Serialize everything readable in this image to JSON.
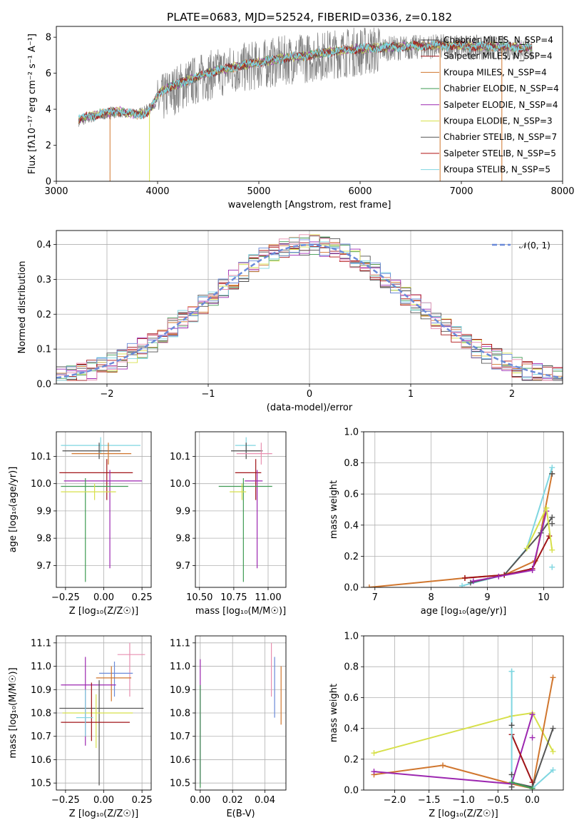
{
  "figure": {
    "title": "PLATE=0683, MJD=52524, FIBERID=0336, z=0.182",
    "series_colors": {
      "Chabrier MILES": "#4d4d4d",
      "Salpeter MILES": "#a01418",
      "Kroupa MILES": "#d0762e",
      "Chabrier ELODIE": "#3e9a52",
      "Salpeter ELODIE": "#9c27b0",
      "Kroupa ELODIE": "#d7e04a",
      "Chabrier STELIB": "#555555",
      "Salpeter STELIB": "#b01010",
      "Kroupa STELIB": "#7fd6e0"
    }
  },
  "chart_data": [
    {
      "id": "spectrum",
      "type": "line",
      "xlabel": "wavelength [Angstrom, rest frame]",
      "ylabel": "Flux [f$_\\lambda$10$^{-17}$ erg cm$^{-2}$ s$^{-1}$ A$^{-1}$]",
      "ylabel_display": "Flux [fλ10⁻¹⁷ erg cm⁻² s⁻¹ A⁻¹]",
      "xlim": [
        3000,
        8000
      ],
      "ylim": [
        0,
        8.6
      ],
      "xticks": [
        3000,
        4000,
        5000,
        6000,
        7000,
        8000
      ],
      "yticks": [
        0,
        2,
        4,
        6,
        8
      ],
      "legend_loc": "right",
      "legend": [
        {
          "label": "Chabrier MILES, N$_{SSP}$=4",
          "display": "Chabrier MILES, N_SSP=4",
          "color": "#4d4d4d"
        },
        {
          "label": "Salpeter MILES, N$_{SSP}$=4",
          "display": "Salpeter MILES, N_SSP=4",
          "color": "#a01418"
        },
        {
          "label": "Kroupa MILES, N$_{SSP}$=4",
          "display": "Kroupa MILES, N_SSP=4",
          "color": "#d0762e"
        },
        {
          "label": "Chabrier ELODIE, N$_{SSP}$=4",
          "display": "Chabrier ELODIE, N_SSP=4",
          "color": "#3e9a52"
        },
        {
          "label": "Salpeter ELODIE, N$_{SSP}$=4",
          "display": "Salpeter ELODIE, N_SSP=4",
          "color": "#9c27b0"
        },
        {
          "label": "Kroupa ELODIE, N$_{SSP}$=3",
          "display": "Kroupa ELODIE, N_SSP=3",
          "color": "#d7e04a"
        },
        {
          "label": "Chabrier STELIB, N$_{SSP}$=7",
          "display": "Chabrier STELIB, N_SSP=7",
          "color": "#555555"
        },
        {
          "label": "Salpeter STELIB, N$_{SSP}$=5",
          "display": "Salpeter STELIB, N_SSP=5",
          "color": "#b01010"
        },
        {
          "label": "Kroupa STELIB, N$_{SSP}$=5",
          "display": "Kroupa STELIB, N_SSP=5",
          "color": "#7fd6e0"
        }
      ],
      "data_envelope": {
        "x": [
          3220,
          3400,
          3600,
          3800,
          3950,
          4100,
          4300,
          4500,
          4700,
          4900,
          5100,
          5300,
          5500,
          5700,
          5900,
          6100,
          6300,
          6500,
          6700,
          6900,
          7100,
          7300,
          7500,
          7700
        ],
        "y": [
          3.3,
          3.6,
          3.8,
          3.8,
          4.2,
          5.0,
          5.6,
          6.0,
          6.3,
          6.5,
          6.7,
          6.9,
          7.0,
          7.2,
          7.3,
          7.4,
          7.45,
          7.5,
          7.55,
          7.55,
          7.5,
          7.5,
          7.45,
          7.4
        ]
      },
      "model": {
        "x": [
          3220,
          3300,
          3400,
          3500,
          3600,
          3700,
          3800,
          3900,
          3950,
          4000,
          4100,
          4200,
          4300,
          4500,
          4700,
          4900,
          5100,
          5300,
          5500,
          5700,
          5900,
          6100,
          6300,
          6500,
          6700,
          6900,
          7100,
          7300,
          7500,
          7700
        ],
        "y": [
          3.4,
          3.6,
          3.7,
          3.8,
          3.9,
          3.8,
          3.7,
          3.8,
          4.2,
          4.8,
          5.2,
          5.4,
          5.6,
          6.0,
          6.3,
          6.5,
          6.7,
          6.9,
          7.0,
          7.2,
          7.3,
          7.4,
          7.45,
          7.5,
          7.55,
          7.55,
          7.5,
          7.5,
          7.45,
          7.4
        ]
      },
      "dropouts": [
        {
          "series": "Kroupa MILES",
          "x": 3530
        },
        {
          "series": "Kroupa ELODIE",
          "x": 3920
        },
        {
          "series": "Kroupa MILES",
          "x": 6790
        },
        {
          "series": "Kroupa MILES",
          "x": 7400
        }
      ]
    },
    {
      "id": "residuals",
      "type": "histogram",
      "xlabel": "(data-model)/error",
      "ylabel": "Normed distribution",
      "xlim": [
        -2.5,
        2.5
      ],
      "ylim": [
        0,
        0.44
      ],
      "xticks": [
        -2,
        -1,
        0,
        1,
        2
      ],
      "yticks": [
        0.0,
        0.1,
        0.2,
        0.3,
        0.4
      ],
      "legend_loc": "top-right",
      "reference_curve": {
        "label": "$\\mathcal{N}(0,1)$",
        "display": "𝒩(0, 1)",
        "color": "#6a8ad8"
      },
      "bin_width": 0.1,
      "bin_edges_start": -2.5,
      "series_shape": [
        0.04,
        0.045,
        0.05,
        0.055,
        0.065,
        0.08,
        0.09,
        0.1,
        0.12,
        0.13,
        0.15,
        0.17,
        0.19,
        0.2,
        0.22,
        0.24,
        0.25,
        0.27,
        0.29,
        0.3,
        0.31,
        0.32,
        0.33,
        0.34,
        0.36,
        0.37,
        0.38,
        0.38,
        0.39,
        0.39,
        0.37,
        0.38,
        0.38,
        0.37,
        0.36,
        0.35,
        0.34,
        0.33,
        0.31,
        0.3,
        0.28,
        0.26,
        0.25,
        0.23,
        0.21,
        0.19,
        0.17,
        0.15,
        0.13,
        0.11
      ]
    },
    {
      "id": "age-vs-Z",
      "type": "errorbar",
      "xlabel": "Z [log$_{10}$(Z/Z$_\\odot$)]",
      "xlabel_display": "Z [log₁₀(Z/Z☉)]",
      "ylabel": "age  [log$_{10}$(age/yr)]",
      "ylabel_display": "age  [log₁₀(age/yr)]",
      "xlim": [
        -0.31,
        0.31
      ],
      "ylim": [
        9.62,
        10.19
      ],
      "xticks": [
        -0.25,
        0.0,
        0.25
      ],
      "yticks": [
        9.7,
        9.8,
        9.9,
        10.0,
        10.1
      ],
      "points": [
        {
          "x": -0.02,
          "xerr": [
            0.26,
            0.26
          ],
          "y": 10.14,
          "yerr": [
            0.03,
            0.03
          ],
          "c": "#7fd6e0"
        },
        {
          "x": -0.03,
          "xerr": [
            0.24,
            0.14
          ],
          "y": 10.12,
          "yerr": [
            0.03,
            0.03
          ],
          "c": "#4d4d4d"
        },
        {
          "x": 0.03,
          "xerr": [
            0.24,
            0.15
          ],
          "y": 10.11,
          "yerr": [
            0.04,
            0.04
          ],
          "c": "#d0762e"
        },
        {
          "x": 0.02,
          "xerr": [
            0.31,
            0.17
          ],
          "y": 10.04,
          "yerr": [
            0.1,
            0.05
          ],
          "c": "#a01418"
        },
        {
          "x": 0.04,
          "xerr": [
            0.3,
            0.21
          ],
          "y": 10.01,
          "yerr": [
            0.32,
            0.04
          ],
          "c": "#9c27b0"
        },
        {
          "x": -0.12,
          "xerr": [
            0.16,
            0.28
          ],
          "y": 9.99,
          "yerr": [
            0.35,
            0.03
          ],
          "c": "#3e9a52"
        },
        {
          "x": -0.06,
          "xerr": [
            0.22,
            0.14
          ],
          "y": 9.97,
          "yerr": [
            0.03,
            0.03
          ],
          "c": "#d7e04a"
        }
      ]
    },
    {
      "id": "age-vs-mass",
      "type": "errorbar",
      "xlabel": "mass [log$_{10}$(M/M$_\\odot$)]",
      "xlabel_display": "mass [log₁₀(M/M☉)]",
      "xlim": [
        10.47,
        11.13
      ],
      "ylim": [
        9.62,
        10.19
      ],
      "xticks": [
        10.5,
        10.75,
        11.0
      ],
      "yticks": [
        9.7,
        9.8,
        9.9,
        10.0,
        10.1
      ],
      "points": [
        {
          "x": 10.84,
          "xerr": [
            0.08,
            0.07
          ],
          "y": 10.14,
          "yerr": [
            0.03,
            0.03
          ],
          "c": "#7fd6e0"
        },
        {
          "x": 10.84,
          "xerr": [
            0.11,
            0.12
          ],
          "y": 10.12,
          "yerr": [
            0.03,
            0.03
          ],
          "c": "#4d4d4d"
        },
        {
          "x": 10.95,
          "xerr": [
            0.18,
            0.08
          ],
          "y": 10.11,
          "yerr": [
            0.04,
            0.04
          ],
          "c": "#e88fb0"
        },
        {
          "x": 10.91,
          "xerr": [
            0.15,
            0.04
          ],
          "y": 10.04,
          "yerr": [
            0.1,
            0.05
          ],
          "c": "#a01418"
        },
        {
          "x": 10.92,
          "xerr": [
            0.09,
            0.04
          ],
          "y": 10.01,
          "yerr": [
            0.32,
            0.04
          ],
          "c": "#9c27b0"
        },
        {
          "x": 10.82,
          "xerr": [
            0.18,
            0.21
          ],
          "y": 9.99,
          "yerr": [
            0.35,
            0.03
          ],
          "c": "#3e9a52"
        },
        {
          "x": 10.81,
          "xerr": [
            0.09,
            0.03
          ],
          "y": 9.97,
          "yerr": [
            0.03,
            0.03
          ],
          "c": "#d7e04a"
        }
      ]
    },
    {
      "id": "massweight-vs-age",
      "type": "line",
      "xlabel": "age  [log$_{10}$(age/yr)]",
      "xlabel_display": "age  [log₁₀(age/yr)]",
      "ylabel": "mass weight",
      "xlim": [
        6.8,
        10.35
      ],
      "ylim": [
        0,
        1.0
      ],
      "xticks": [
        7,
        8,
        9,
        10
      ],
      "yticks": [
        0.0,
        0.2,
        0.4,
        0.6,
        0.8,
        1.0
      ],
      "series": [
        {
          "c": "#d0762e",
          "x": [
            6.9,
            8.6,
            9.3,
            9.85,
            10.15
          ],
          "y": [
            0.0,
            0.06,
            0.08,
            0.17,
            0.73
          ]
        },
        {
          "c": "#7fd6e0",
          "x": [
            8.55,
            9.3,
            9.7,
            10.15
          ],
          "y": [
            0.01,
            0.08,
            0.25,
            0.77
          ]
        },
        {
          "c": "#555555",
          "x": [
            8.7,
            9.3,
            9.95,
            10.15
          ],
          "y": [
            0.03,
            0.08,
            0.35,
            0.45
          ]
        },
        {
          "c": "#a01418",
          "x": [
            8.6,
            9.3,
            9.8,
            10.1
          ],
          "y": [
            0.06,
            0.08,
            0.12,
            0.33
          ]
        },
        {
          "c": "#9c27b0",
          "x": [
            8.75,
            9.2,
            9.8,
            10.05
          ],
          "y": [
            0.04,
            0.07,
            0.11,
            0.49
          ]
        },
        {
          "c": "#d7e04a",
          "x": [
            9.7,
            10.05,
            10.15
          ],
          "y": [
            0.25,
            0.51,
            0.24
          ]
        }
      ],
      "markers": [
        {
          "c": "#7fd6e0",
          "x": 10.15,
          "y": 0.13
        },
        {
          "c": "#555555",
          "x": 10.15,
          "y": 0.41
        },
        {
          "c": "#4d4d4d",
          "x": 10.15,
          "y": 0.73
        }
      ]
    },
    {
      "id": "mass-vs-Z",
      "type": "errorbar",
      "xlabel": "Z [log$_{10}$(Z/Z$_\\odot$)]",
      "xlabel_display": "Z [log₁₀(Z/Z☉)]",
      "ylabel": "mass [log$_{10}$(M/M$_\\odot$)]",
      "ylabel_display": "mass [log₁₀(M/M☉)]",
      "xlim": [
        -0.31,
        0.31
      ],
      "ylim": [
        10.47,
        11.13
      ],
      "xticks": [
        -0.25,
        0.0,
        0.25
      ],
      "yticks": [
        10.5,
        10.6,
        10.7,
        10.8,
        10.9,
        11.0,
        11.1
      ],
      "points": [
        {
          "x": 0.17,
          "xerr": [
            0.08,
            0.1
          ],
          "y": 11.05,
          "yerr": [
            0.18,
            0.05
          ],
          "c": "#e88fb0"
        },
        {
          "x": 0.07,
          "xerr": [
            0.1,
            0.12
          ],
          "y": 10.97,
          "yerr": [
            0.1,
            0.05
          ],
          "c": "#6a8ad8"
        },
        {
          "x": 0.05,
          "xerr": [
            0.1,
            0.13
          ],
          "y": 10.95,
          "yerr": [
            0.1,
            0.05
          ],
          "c": "#d0762e"
        },
        {
          "x": -0.12,
          "xerr": [
            0.16,
            0.2
          ],
          "y": 10.92,
          "yerr": [
            0.26,
            0.12
          ],
          "c": "#9c27b0"
        },
        {
          "x": -0.03,
          "xerr": [
            0.26,
            0.29
          ],
          "y": 10.82,
          "yerr": [
            0.33,
            0.12
          ],
          "c": "#4d4d4d"
        },
        {
          "x": -0.05,
          "xerr": [
            0.22,
            0.24
          ],
          "y": 10.8,
          "yerr": [
            0.15,
            0.08
          ],
          "c": "#d7e04a"
        },
        {
          "x": -0.08,
          "xerr": [
            0.2,
            0.25
          ],
          "y": 10.76,
          "yerr": [
            0.08,
            0.17
          ],
          "c": "#a01418"
        },
        {
          "x": -0.12,
          "xerr": [
            0.06,
            0.05
          ],
          "y": 10.78,
          "yerr": [
            0.08,
            0.12
          ],
          "c": "#7fd6e0"
        }
      ]
    },
    {
      "id": "mass-vs-EBV",
      "type": "errorbar",
      "xlabel": "E(B-V)",
      "xlim": [
        -0.003,
        0.053
      ],
      "ylim": [
        10.47,
        11.13
      ],
      "xticks": [
        0.0,
        0.02,
        0.04
      ],
      "yticks": [
        10.5,
        10.6,
        10.7,
        10.8,
        10.9,
        11.0,
        11.1
      ],
      "points": [
        {
          "x": 0.0,
          "y": 10.9,
          "yerr": [
            0.4,
            0.13
          ],
          "c": "#9c27b0"
        },
        {
          "x": 0.0,
          "y": 10.8,
          "yerr": [
            0.32,
            0.12
          ],
          "c": "#3e9a52"
        },
        {
          "x": 0.044,
          "y": 11.0,
          "yerr": [
            0.13,
            0.1
          ],
          "c": "#e88fb0"
        },
        {
          "x": 0.046,
          "y": 10.91,
          "yerr": [
            0.13,
            0.13
          ],
          "c": "#6a8ad8"
        },
        {
          "x": 0.05,
          "y": 10.88,
          "yerr": [
            0.13,
            0.12
          ],
          "c": "#d0762e"
        }
      ]
    },
    {
      "id": "massweight-vs-Z",
      "type": "line",
      "xlabel": "Z [log$_{10}$(Z/Z$_\\odot$)]",
      "xlabel_display": "Z [log₁₀(Z/Z☉)]",
      "ylabel": "mass weight",
      "xlim": [
        -2.45,
        0.45
      ],
      "ylim": [
        0,
        1.0
      ],
      "xticks": [
        -2.0,
        -1.5,
        -1.0,
        -0.5,
        0.0
      ],
      "yticks": [
        0.0,
        0.2,
        0.4,
        0.6,
        0.8,
        1.0
      ],
      "series": [
        {
          "c": "#d7e04a",
          "x": [
            -2.3,
            -0.3,
            0.0,
            0.3
          ],
          "y": [
            0.24,
            0.48,
            0.5,
            0.25
          ]
        },
        {
          "c": "#d0762e",
          "x": [
            -2.3,
            -1.3,
            -0.3,
            0.0,
            0.3
          ],
          "y": [
            0.1,
            0.16,
            0.04,
            0.01,
            0.73
          ]
        },
        {
          "c": "#9c27b0",
          "x": [
            -2.3,
            -0.3,
            0.0
          ],
          "y": [
            0.12,
            0.04,
            0.49
          ]
        },
        {
          "c": "#a01418",
          "x": [
            -0.3,
            0.0
          ],
          "y": [
            0.36,
            0.05
          ]
        },
        {
          "c": "#555555",
          "x": [
            -0.3,
            0.0,
            0.3
          ],
          "y": [
            0.05,
            0.02,
            0.4
          ]
        },
        {
          "c": "#7fd6e0",
          "x": [
            -0.3,
            -0.3,
            0.0,
            0.3
          ],
          "y": [
            0.77,
            0.05,
            0.01,
            0.13
          ]
        },
        {
          "c": "#3e9a52",
          "x": [
            -0.3,
            0.0
          ],
          "y": [
            0.05,
            0.01
          ]
        }
      ],
      "markers": [
        {
          "c": "#4d4d4d",
          "x": -0.3,
          "y": 0.42
        },
        {
          "c": "#4d4d4d",
          "x": -0.3,
          "y": 0.1
        },
        {
          "c": "#4d4d4d",
          "x": -0.3,
          "y": 0.02
        },
        {
          "c": "#9c27b0",
          "x": 0.0,
          "y": 0.34
        },
        {
          "c": "#7fd6e0",
          "x": -0.3,
          "y": 0.77
        }
      ]
    }
  ]
}
